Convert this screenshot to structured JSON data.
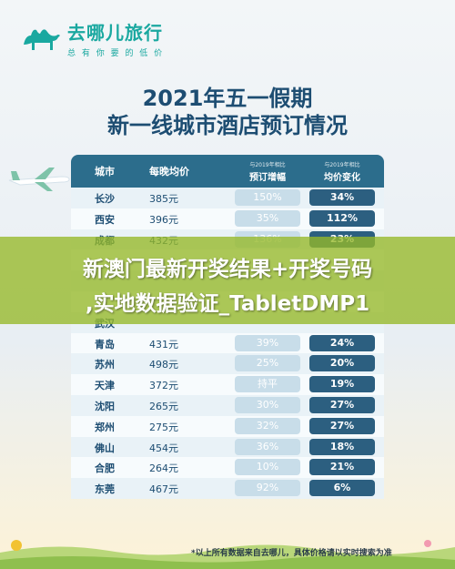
{
  "brand": {
    "name": "去哪儿旅行",
    "slogan": "总 有 你 要 的 低 价"
  },
  "title": {
    "line1": "2021年五一假期",
    "line2": "新一线城市酒店预订情况"
  },
  "table": {
    "headers": {
      "city": "城市",
      "price": "每晚均价",
      "bookings_sub": "与2019年相比",
      "bookings": "预订增幅",
      "avg_sub": "与2019年相比",
      "avg": "均价变化"
    },
    "rows": [
      {
        "city": "长沙",
        "price": "385元",
        "growth": "150%",
        "change": "34%"
      },
      {
        "city": "西安",
        "price": "396元",
        "growth": "35%",
        "change": "112%"
      },
      {
        "city": "成都",
        "price": "432元",
        "growth": "136%",
        "change": "23%"
      },
      {
        "city": "",
        "price": "",
        "growth": "",
        "change": ""
      },
      {
        "city": "",
        "price": "",
        "growth": "",
        "change": ""
      },
      {
        "city": "",
        "price": "",
        "growth": "",
        "change": ""
      },
      {
        "city": "武汉",
        "price": "",
        "growth": "",
        "change": ""
      },
      {
        "city": "青岛",
        "price": "431元",
        "growth": "39%",
        "change": "24%"
      },
      {
        "city": "苏州",
        "price": "498元",
        "growth": "25%",
        "change": "20%"
      },
      {
        "city": "天津",
        "price": "372元",
        "growth": "持平",
        "change": "19%"
      },
      {
        "city": "沈阳",
        "price": "265元",
        "growth": "30%",
        "change": "27%"
      },
      {
        "city": "郑州",
        "price": "275元",
        "growth": "32%",
        "change": "27%"
      },
      {
        "city": "佛山",
        "price": "454元",
        "growth": "36%",
        "change": "18%"
      },
      {
        "city": "合肥",
        "price": "264元",
        "growth": "10%",
        "change": "21%"
      },
      {
        "city": "东莞",
        "price": "467元",
        "growth": "92%",
        "change": "6%"
      }
    ]
  },
  "overlay": {
    "line1": "新澳门最新开奖结果+开奖号码",
    "line2": ",实地数据验证_TabletDMP1"
  },
  "footnote": "*以上所有数据来自去哪儿，具体价格请以实时搜索为准",
  "colors": {
    "brand": "#1aa8a0",
    "title": "#1d4d72",
    "header": "#2c6d8c",
    "change_pill": "#2c5f80",
    "growth_pill": "#c8dde9",
    "banner": "#96b928"
  },
  "icons": [
    "camel-logo-icon",
    "airplane-icon",
    "grass-decoration"
  ]
}
